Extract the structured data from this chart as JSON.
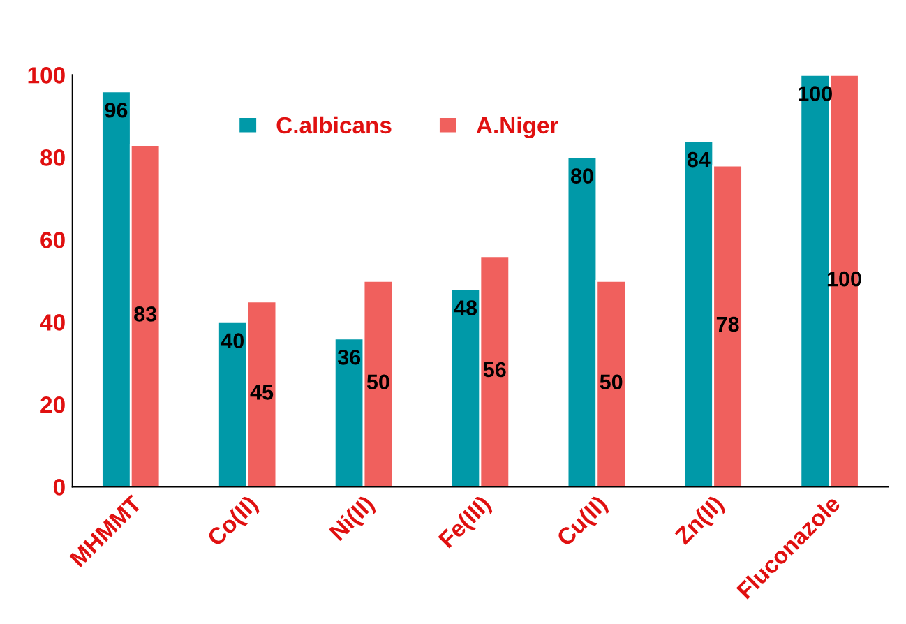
{
  "chart_data": {
    "type": "bar",
    "categories": [
      "MHMMT",
      "Co(II)",
      "Ni(II)",
      "Fe(III)",
      "Cu(II)",
      "Zn(II)",
      "Fluconazole"
    ],
    "series": [
      {
        "name": "C.albicans",
        "color": "#0099a8",
        "values": [
          96,
          40,
          36,
          48,
          80,
          84,
          100
        ]
      },
      {
        "name": "A.Niger",
        "color": "#f0605d",
        "values": [
          83,
          45,
          50,
          56,
          50,
          78,
          100
        ]
      }
    ],
    "ylim": [
      0,
      100
    ],
    "yticks": [
      0,
      20,
      40,
      60,
      80,
      100
    ],
    "data_labels": true,
    "grid": false,
    "legend": "top"
  }
}
